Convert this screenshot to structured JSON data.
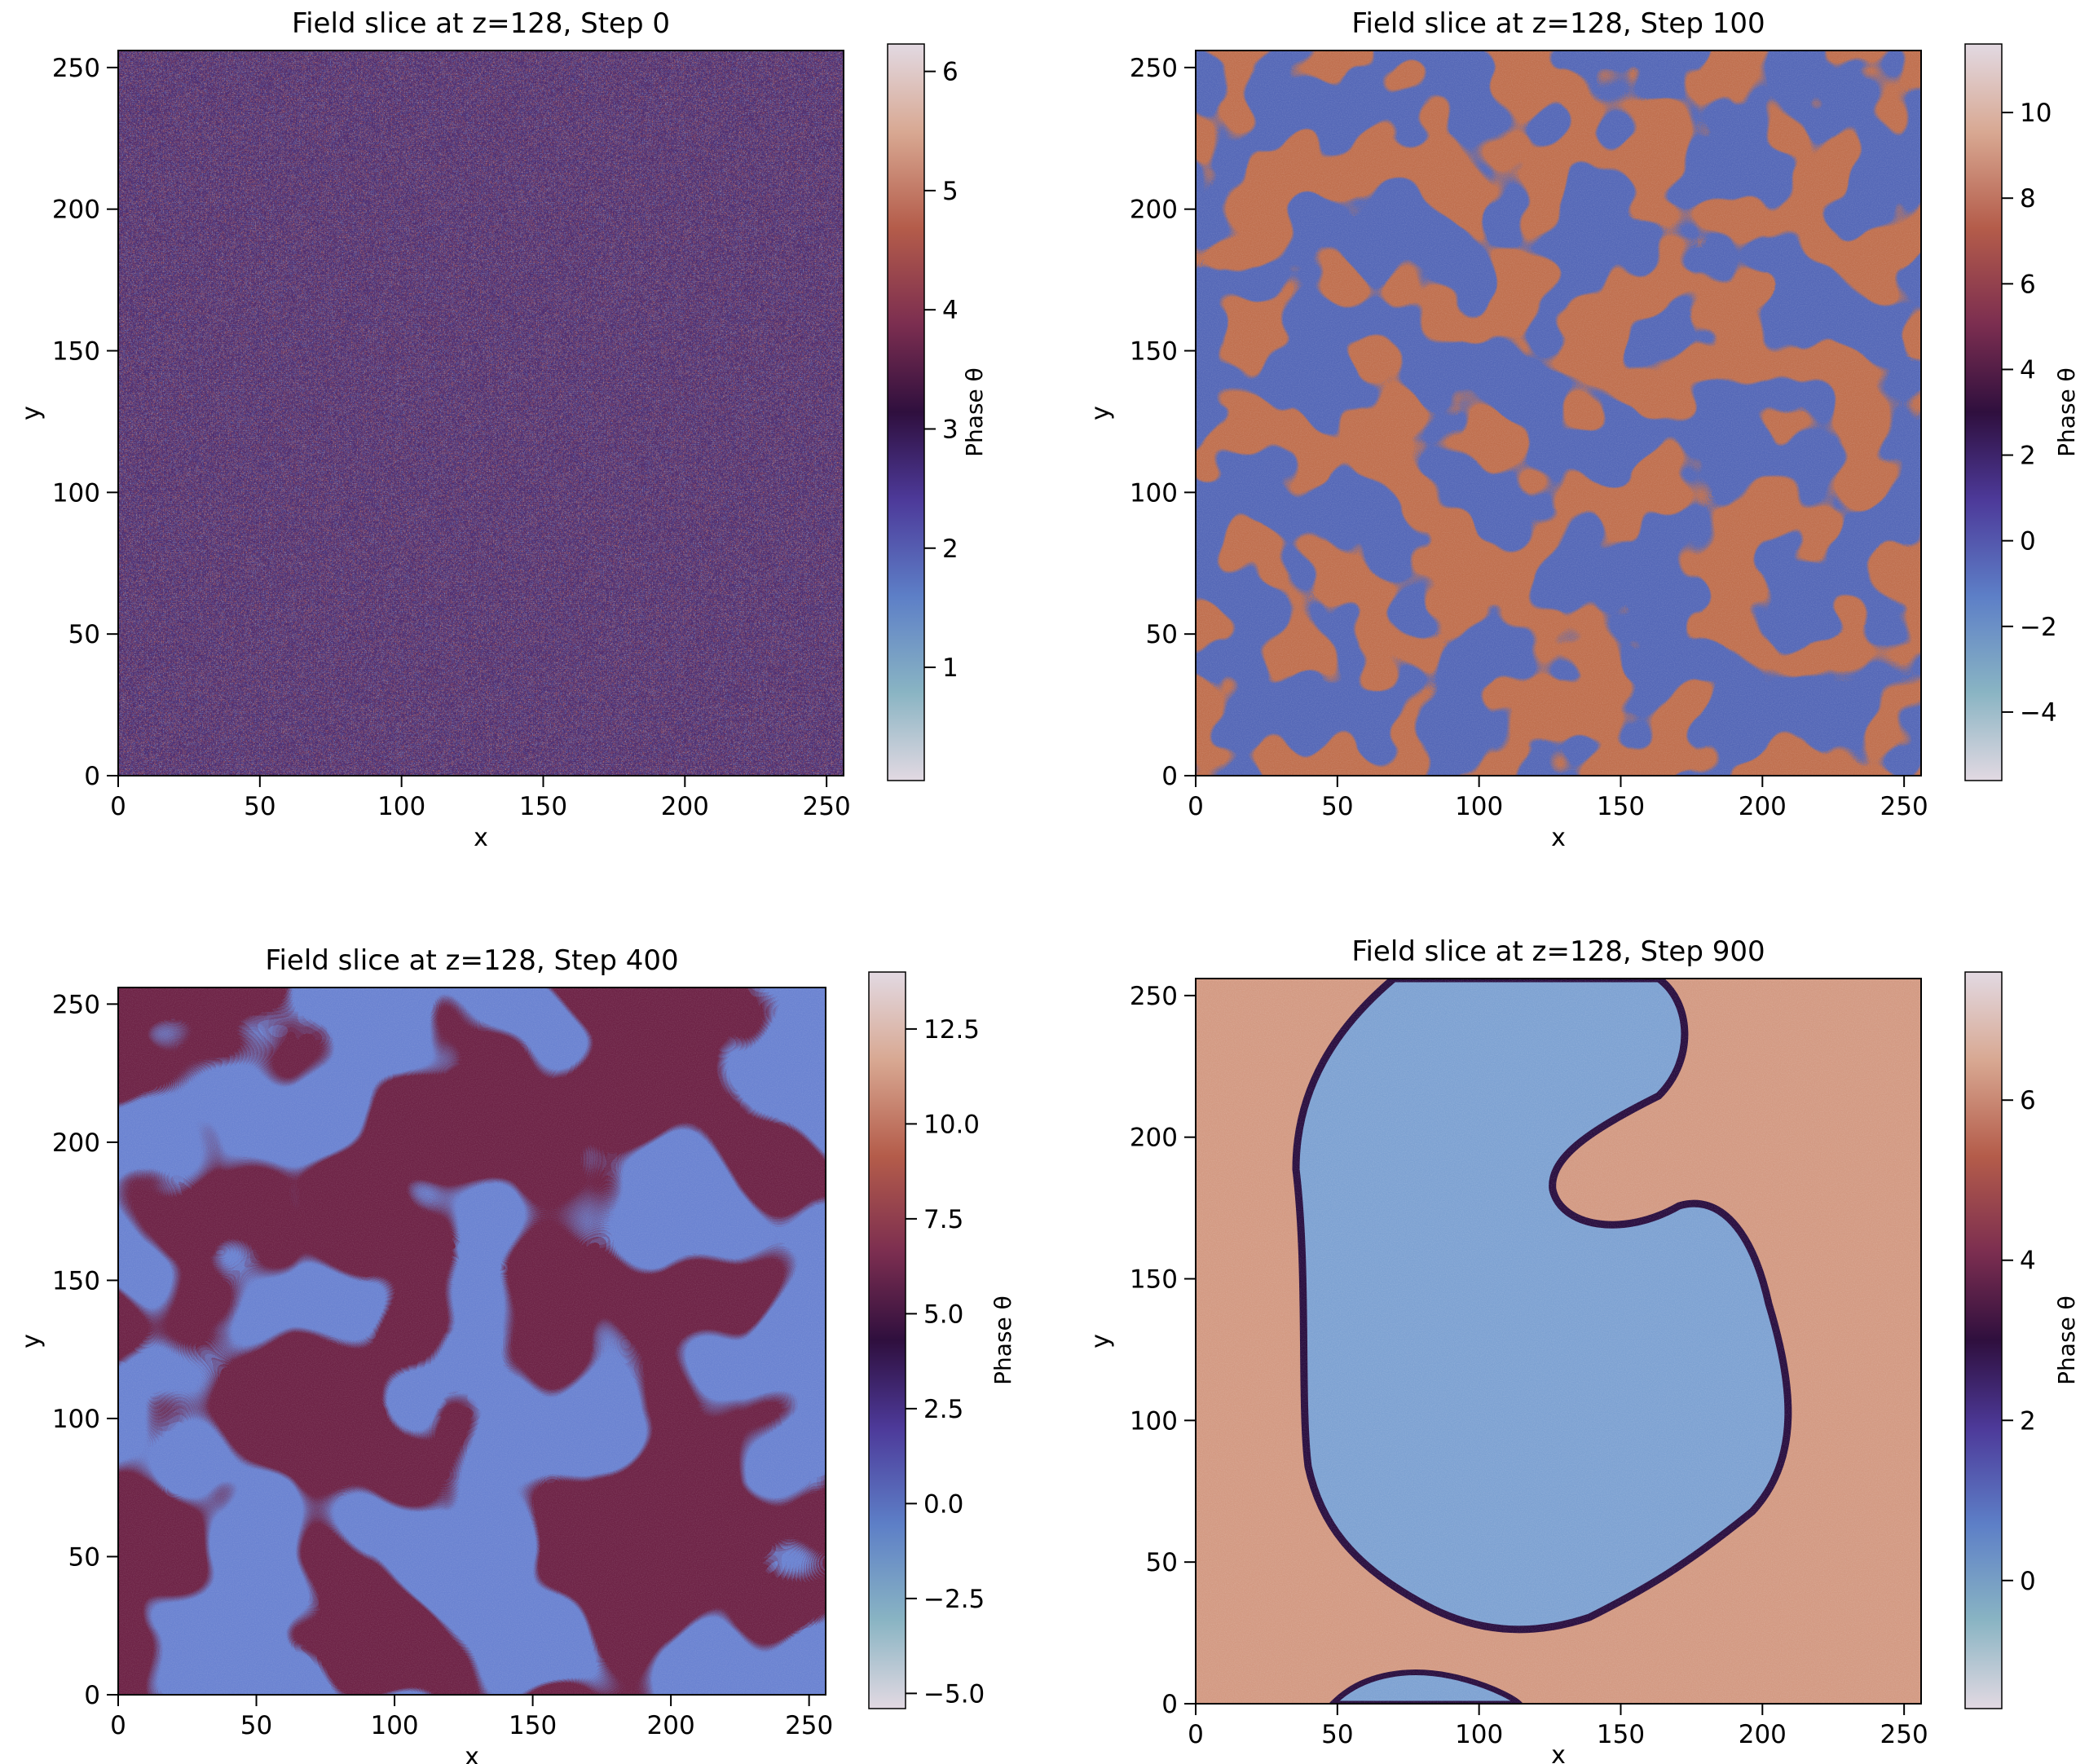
{
  "figure": {
    "colormap_name": "twilight_shifted",
    "colors": {
      "low": "#e2d9e2",
      "teal": "#89b4c3",
      "blue": "#5d7fc7",
      "indigo": "#4d3a9a",
      "deep": "#2f0f3e",
      "maroon": "#7c2e50",
      "rust": "#b45c4a",
      "sand": "#d8a892",
      "high": "#e2d9e2"
    }
  },
  "chart_data": [
    {
      "type": "heatmap",
      "title": "Field slice at z=128, Step 0",
      "xlabel": "x",
      "ylabel": "y",
      "xlim": [
        0,
        256
      ],
      "ylim": [
        0,
        256
      ],
      "xticks": [
        0,
        50,
        100,
        150,
        200,
        250
      ],
      "yticks": [
        0,
        50,
        100,
        150,
        200,
        250
      ],
      "pattern": "uniform random noise",
      "colorbar": {
        "label": "Phase θ",
        "range": [
          0.05,
          6.23
        ],
        "ticks": [
          1,
          2,
          3,
          4,
          5,
          6
        ],
        "tick_labels": [
          "1",
          "2",
          "3",
          "4",
          "5",
          "6"
        ]
      }
    },
    {
      "type": "heatmap",
      "title": "Field slice at z=128, Step 100",
      "xlabel": "x",
      "ylabel": "y",
      "xlim": [
        0,
        256
      ],
      "ylim": [
        0,
        256
      ],
      "xticks": [
        0,
        50,
        100,
        150,
        200,
        250
      ],
      "yticks": [
        0,
        50,
        100,
        150,
        200,
        250
      ],
      "pattern": "fine domains, blue and orange phases",
      "colorbar": {
        "label": "Phase θ",
        "range": [
          -5.6,
          11.6
        ],
        "ticks": [
          -4,
          -2,
          0,
          2,
          4,
          6,
          8,
          10
        ],
        "tick_labels": [
          "−4",
          "−2",
          "0",
          "2",
          "4",
          "6",
          "8",
          "10"
        ]
      }
    },
    {
      "type": "heatmap",
      "title": "Field slice at z=128, Step 400",
      "xlabel": "x",
      "ylabel": "y",
      "xlim": [
        0,
        256
      ],
      "ylim": [
        0,
        256
      ],
      "xticks": [
        0,
        50,
        100,
        150,
        200,
        250
      ],
      "yticks": [
        0,
        50,
        100,
        150,
        200,
        250
      ],
      "pattern": "coarsened domains, blue and maroon phases",
      "colorbar": {
        "label": "Phase θ",
        "range": [
          -5.4,
          14.0
        ],
        "ticks": [
          -5,
          -2.5,
          0,
          2.5,
          5,
          7.5,
          10,
          12.5
        ],
        "tick_labels": [
          "−5.0",
          "−2.5",
          "0.0",
          "2.5",
          "5.0",
          "7.5",
          "10.0",
          "12.5"
        ]
      }
    },
    {
      "type": "heatmap",
      "title": "Field slice at z=128, Step 900",
      "xlabel": "x",
      "ylabel": "y",
      "xlim": [
        0,
        256
      ],
      "ylim": [
        0,
        256
      ],
      "xticks": [
        0,
        50,
        100,
        150,
        200,
        250
      ],
      "yticks": [
        0,
        50,
        100,
        150,
        200,
        250
      ],
      "pattern": "single large blue domain in orange background",
      "colorbar": {
        "label": "Phase θ",
        "range": [
          -1.6,
          7.6
        ],
        "ticks": [
          0,
          2,
          4,
          6
        ],
        "tick_labels": [
          "0",
          "2",
          "4",
          "6"
        ]
      }
    }
  ]
}
